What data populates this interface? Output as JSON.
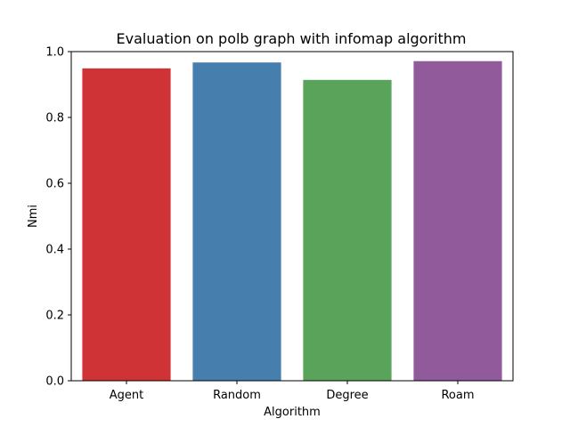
{
  "chart_data": {
    "type": "bar",
    "title": "Evaluation on polb graph with infomap algorithm",
    "xlabel": "Algorithm",
    "ylabel": "Nmi",
    "categories": [
      "Agent",
      "Random",
      "Degree",
      "Roam"
    ],
    "values": [
      0.949,
      0.967,
      0.914,
      0.971
    ],
    "colors": [
      "#d03336",
      "#467fae",
      "#5aa35a",
      "#915b9b"
    ],
    "ylim": [
      0,
      1.0
    ],
    "yticks": [
      0.0,
      0.2,
      0.4,
      0.6,
      0.8,
      1.0
    ],
    "ytick_labels": [
      "0.0",
      "0.2",
      "0.4",
      "0.6",
      "0.8",
      "1.0"
    ],
    "grid": false,
    "legend": "none"
  }
}
